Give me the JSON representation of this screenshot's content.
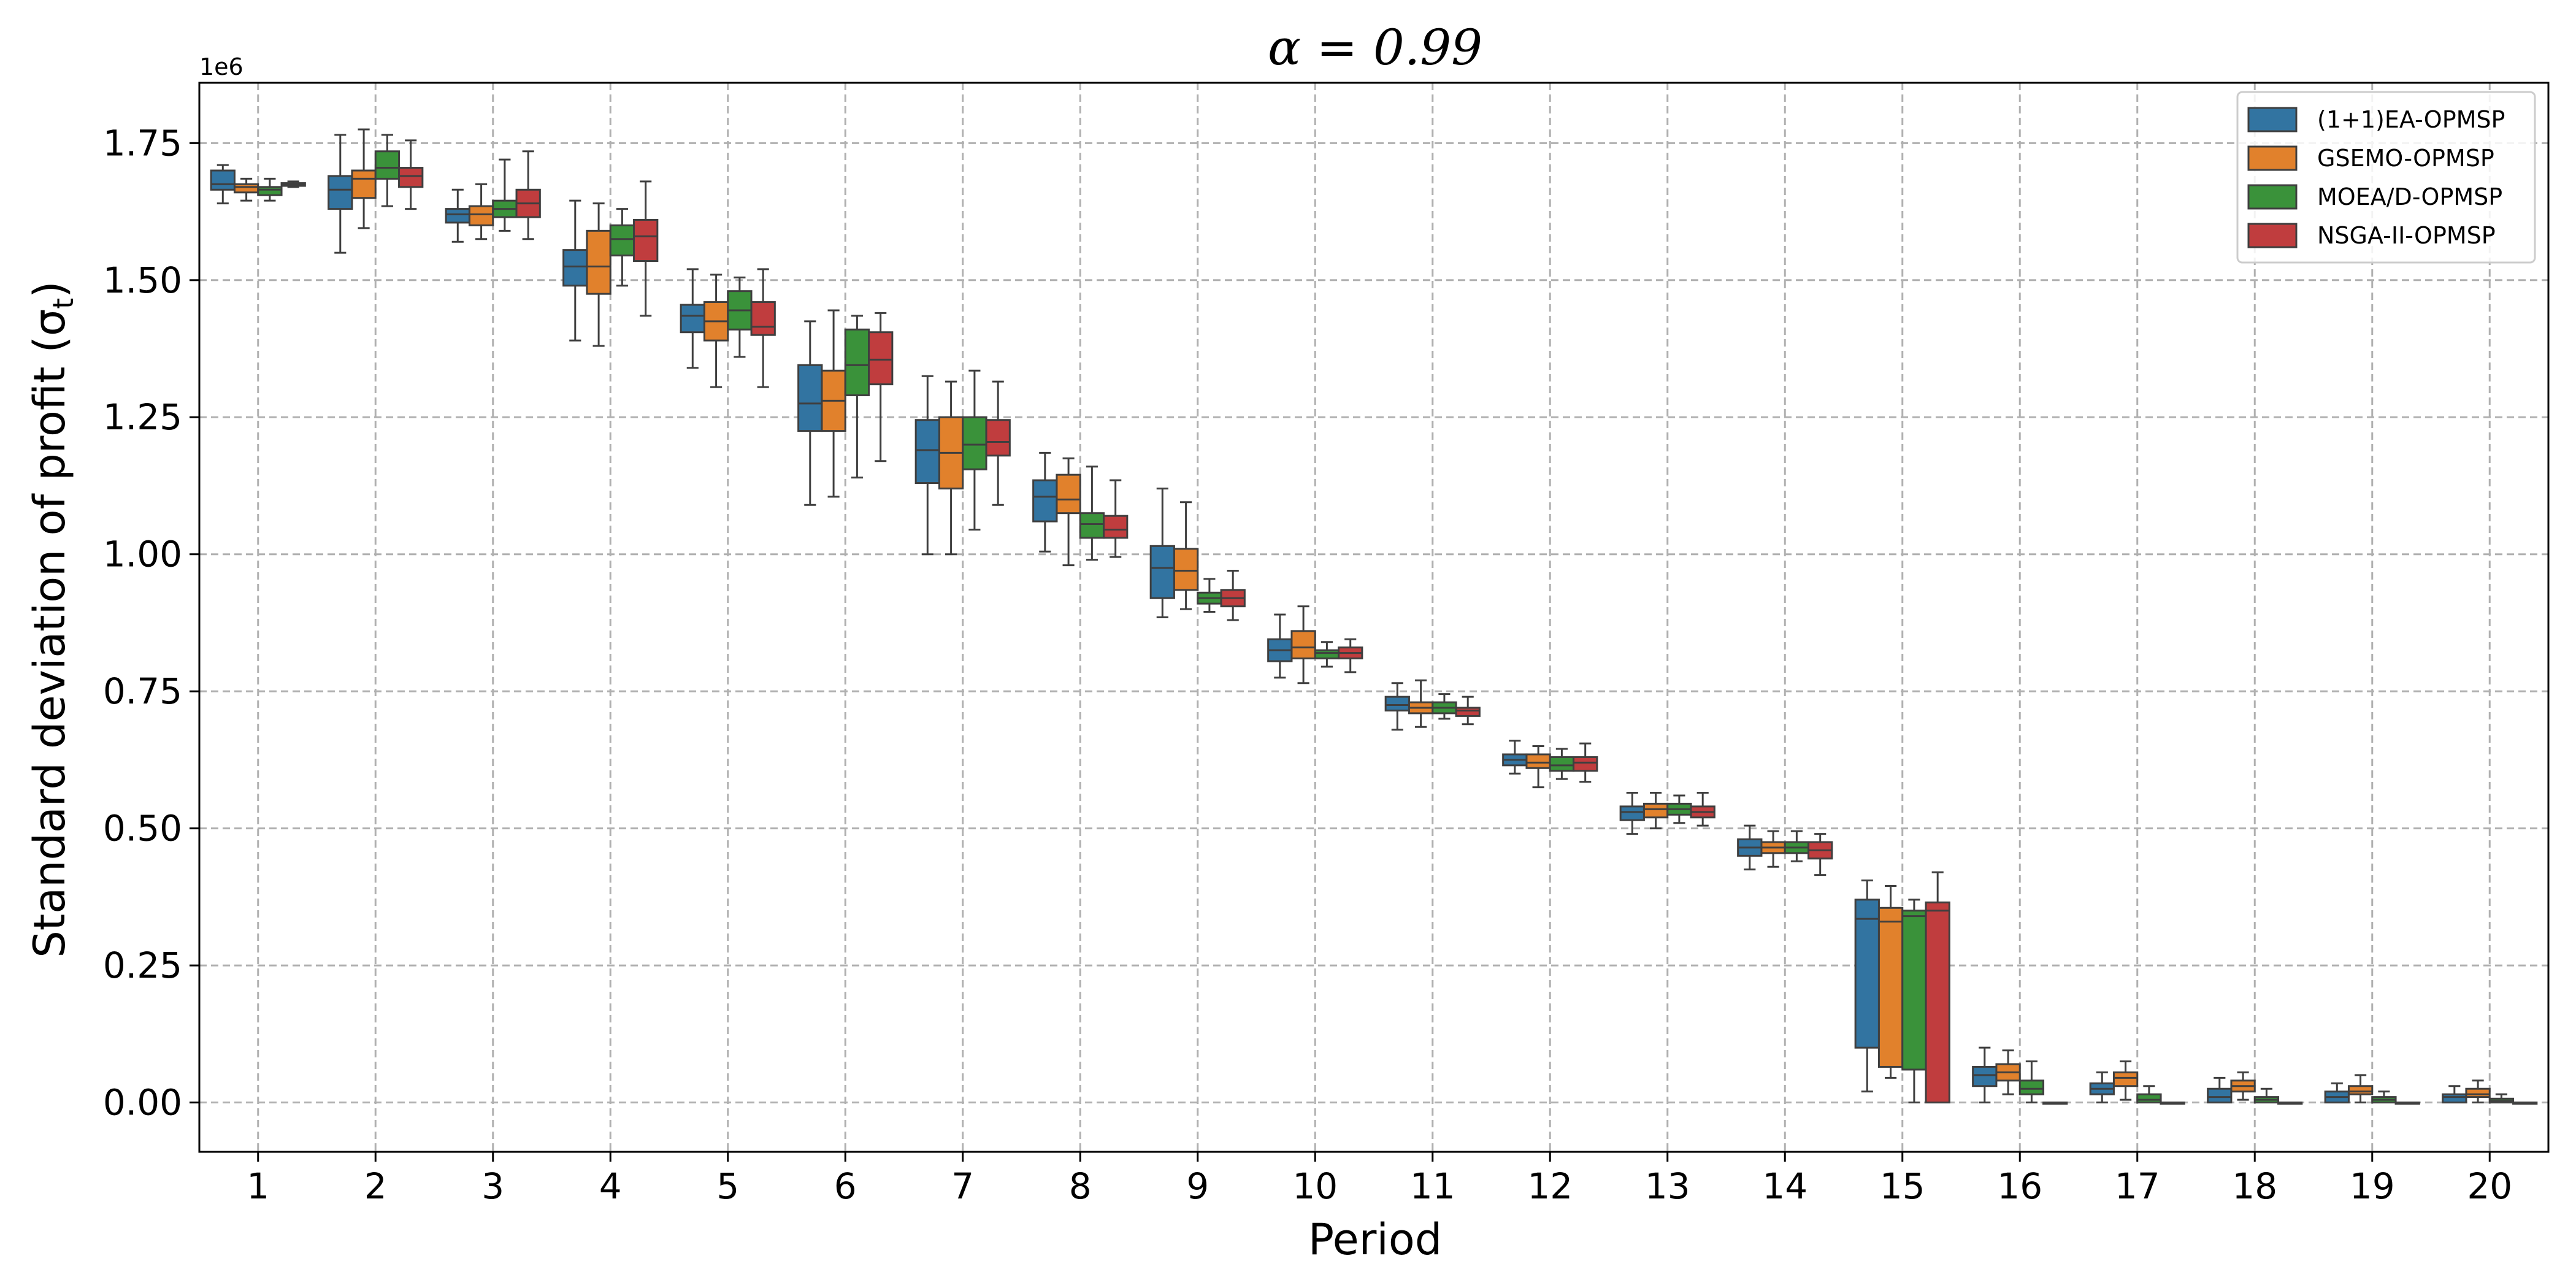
{
  "chart_data": {
    "type": "boxplot",
    "title": "α = 0.99",
    "xlabel": "Period",
    "ylabel": "Standard deviation of profit (σ_t)",
    "y_offset_label": "1e6",
    "ylim": [
      -0.09,
      1.86
    ],
    "y_ticks": [
      0.0,
      0.25,
      0.5,
      0.75,
      1.0,
      1.25,
      1.5,
      1.75
    ],
    "y_tick_labels": [
      "0.00",
      "0.25",
      "0.50",
      "0.75",
      "1.00",
      "1.25",
      "1.50",
      "1.75"
    ],
    "categories": [
      "1",
      "2",
      "3",
      "4",
      "5",
      "6",
      "7",
      "8",
      "9",
      "10",
      "11",
      "12",
      "13",
      "14",
      "15",
      "16",
      "17",
      "18",
      "19",
      "20"
    ],
    "grid": true,
    "legend_position": "top-right",
    "series": [
      {
        "name": "(1+1)EA-OPMSP",
        "color": "#3274a1",
        "boxes": [
          [
            1.64,
            1.665,
            1.675,
            1.7,
            1.71
          ],
          [
            1.55,
            1.63,
            1.665,
            1.69,
            1.765
          ],
          [
            1.57,
            1.605,
            1.62,
            1.63,
            1.665
          ],
          [
            1.39,
            1.49,
            1.525,
            1.555,
            1.645
          ],
          [
            1.34,
            1.405,
            1.435,
            1.455,
            1.52
          ],
          [
            1.09,
            1.225,
            1.275,
            1.345,
            1.425
          ],
          [
            1.0,
            1.13,
            1.19,
            1.245,
            1.325
          ],
          [
            1.005,
            1.06,
            1.105,
            1.135,
            1.185
          ],
          [
            0.885,
            0.92,
            0.975,
            1.015,
            1.12
          ],
          [
            0.775,
            0.805,
            0.825,
            0.845,
            0.89
          ],
          [
            0.68,
            0.715,
            0.725,
            0.74,
            0.765
          ],
          [
            0.6,
            0.615,
            0.625,
            0.635,
            0.66
          ],
          [
            0.49,
            0.515,
            0.53,
            0.54,
            0.565
          ],
          [
            0.425,
            0.45,
            0.465,
            0.48,
            0.505
          ],
          [
            0.02,
            0.1,
            0.335,
            0.37,
            0.405
          ],
          [
            0.0,
            0.03,
            0.05,
            0.065,
            0.1
          ],
          [
            0.0,
            0.015,
            0.025,
            0.035,
            0.055
          ],
          [
            0.0,
            0.0,
            0.01,
            0.025,
            0.045
          ],
          [
            0.0,
            0.0,
            0.01,
            0.02,
            0.035
          ],
          [
            0.0,
            0.0,
            0.01,
            0.015,
            0.03
          ]
        ]
      },
      {
        "name": "GSEMO-OPMSP",
        "color": "#e1812c",
        "boxes": [
          [
            1.645,
            1.66,
            1.67,
            1.675,
            1.685
          ],
          [
            1.595,
            1.65,
            1.685,
            1.7,
            1.775
          ],
          [
            1.575,
            1.6,
            1.62,
            1.635,
            1.675
          ],
          [
            1.38,
            1.475,
            1.525,
            1.59,
            1.64
          ],
          [
            1.305,
            1.39,
            1.425,
            1.46,
            1.51
          ],
          [
            1.105,
            1.225,
            1.28,
            1.335,
            1.445
          ],
          [
            1.0,
            1.12,
            1.185,
            1.25,
            1.315
          ],
          [
            0.98,
            1.075,
            1.1,
            1.145,
            1.175
          ],
          [
            0.9,
            0.935,
            0.97,
            1.01,
            1.095
          ],
          [
            0.765,
            0.81,
            0.83,
            0.86,
            0.905
          ],
          [
            0.685,
            0.71,
            0.72,
            0.73,
            0.77
          ],
          [
            0.575,
            0.61,
            0.62,
            0.635,
            0.65
          ],
          [
            0.5,
            0.52,
            0.535,
            0.545,
            0.565
          ],
          [
            0.43,
            0.455,
            0.465,
            0.475,
            0.495
          ],
          [
            0.045,
            0.065,
            0.33,
            0.355,
            0.395
          ],
          [
            0.015,
            0.04,
            0.055,
            0.07,
            0.095
          ],
          [
            0.005,
            0.03,
            0.045,
            0.055,
            0.075
          ],
          [
            0.005,
            0.02,
            0.03,
            0.04,
            0.055
          ],
          [
            0.0,
            0.015,
            0.02,
            0.03,
            0.05
          ],
          [
            0.0,
            0.01,
            0.015,
            0.025,
            0.04
          ]
        ]
      },
      {
        "name": "MOEA/D-OPMSP",
        "color": "#3a923a",
        "boxes": [
          [
            1.645,
            1.655,
            1.665,
            1.67,
            1.685
          ],
          [
            1.635,
            1.685,
            1.705,
            1.735,
            1.765
          ],
          [
            1.59,
            1.615,
            1.63,
            1.645,
            1.72
          ],
          [
            1.49,
            1.545,
            1.575,
            1.6,
            1.63
          ],
          [
            1.36,
            1.41,
            1.445,
            1.48,
            1.505
          ],
          [
            1.14,
            1.29,
            1.345,
            1.41,
            1.435
          ],
          [
            1.045,
            1.155,
            1.2,
            1.25,
            1.335
          ],
          [
            0.99,
            1.03,
            1.055,
            1.075,
            1.16
          ],
          [
            0.895,
            0.91,
            0.92,
            0.93,
            0.955
          ],
          [
            0.795,
            0.81,
            0.82,
            0.825,
            0.84
          ],
          [
            0.7,
            0.71,
            0.72,
            0.73,
            0.745
          ],
          [
            0.59,
            0.605,
            0.615,
            0.63,
            0.645
          ],
          [
            0.51,
            0.525,
            0.535,
            0.545,
            0.56
          ],
          [
            0.44,
            0.455,
            0.465,
            0.475,
            0.495
          ],
          [
            0.0,
            0.06,
            0.34,
            0.35,
            0.37
          ],
          [
            0.0,
            0.015,
            0.025,
            0.04,
            0.075
          ],
          [
            0.0,
            0.0,
            0.005,
            0.015,
            0.03
          ],
          [
            0.0,
            0.0,
            0.005,
            0.01,
            0.025
          ],
          [
            0.0,
            0.0,
            0.005,
            0.01,
            0.02
          ],
          [
            0.0,
            0.0,
            0.003,
            0.007,
            0.015
          ]
        ]
      },
      {
        "name": "NSGA-II-OPMSP",
        "color": "#c03d3e",
        "boxes": [
          [
            1.67,
            1.672,
            1.675,
            1.677,
            1.68
          ],
          [
            1.63,
            1.67,
            1.69,
            1.705,
            1.755
          ],
          [
            1.575,
            1.615,
            1.64,
            1.665,
            1.735
          ],
          [
            1.435,
            1.535,
            1.58,
            1.61,
            1.68
          ],
          [
            1.305,
            1.4,
            1.415,
            1.46,
            1.52
          ],
          [
            1.17,
            1.31,
            1.355,
            1.405,
            1.44
          ],
          [
            1.09,
            1.18,
            1.205,
            1.245,
            1.315
          ],
          [
            0.995,
            1.03,
            1.045,
            1.07,
            1.135
          ],
          [
            0.88,
            0.905,
            0.92,
            0.935,
            0.97
          ],
          [
            0.785,
            0.81,
            0.82,
            0.83,
            0.845
          ],
          [
            0.69,
            0.705,
            0.715,
            0.72,
            0.74
          ],
          [
            0.585,
            0.605,
            0.62,
            0.63,
            0.655
          ],
          [
            0.505,
            0.52,
            0.53,
            0.54,
            0.565
          ],
          [
            0.415,
            0.445,
            0.46,
            0.475,
            0.49
          ],
          [
            0.0,
            0.0,
            0.35,
            0.365,
            0.42
          ],
          [
            0.0,
            0.0,
            0.0,
            0.0,
            0.0
          ],
          [
            0.0,
            0.0,
            0.0,
            0.0,
            0.0
          ],
          [
            0.0,
            0.0,
            0.0,
            0.0,
            0.0
          ],
          [
            0.0,
            0.0,
            0.0,
            0.0,
            0.0
          ],
          [
            0.0,
            0.0,
            0.0,
            0.0,
            0.0
          ]
        ]
      }
    ]
  }
}
